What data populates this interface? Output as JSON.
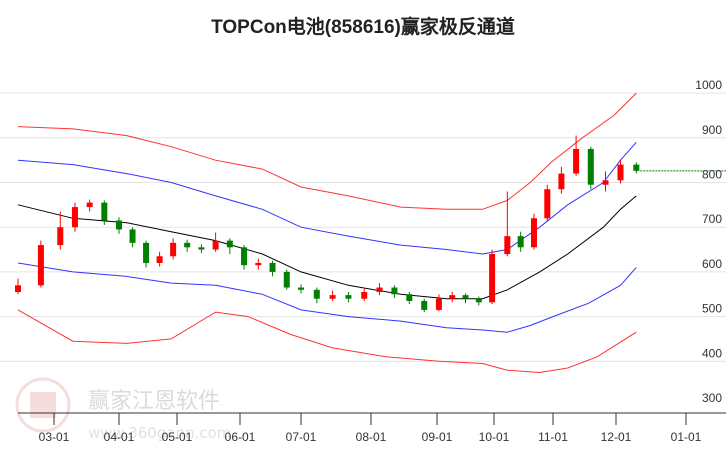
{
  "chart_data": {
    "type": "candlestick",
    "title": "TOPCon电池(858616)赢家极反通道",
    "watermark": {
      "name": "赢家江恩软件",
      "url": "www.360gann.com",
      "seal": "江赢恩家"
    },
    "y_ticks": [
      300,
      400,
      500,
      600,
      700,
      800,
      900,
      1000
    ],
    "ylim": [
      285,
      1030
    ],
    "x_ticks": [
      "03-01",
      "04-01",
      "05-01",
      "06-01",
      "07-01",
      "08-01",
      "09-01",
      "10-01",
      "11-01",
      "12-01",
      "01-01"
    ],
    "grid": "horizontal",
    "colors": {
      "up": "#ff0000",
      "down": "#008000",
      "outer": "#ff3333",
      "inner": "#3333ff",
      "mid": "#000000",
      "last": "#008000"
    },
    "last_value": 826,
    "candles": [
      [
        "02-19",
        555,
        570,
        585,
        550
      ],
      [
        "02-26",
        570,
        660,
        670,
        565
      ],
      [
        "03-04",
        660,
        700,
        735,
        650
      ],
      [
        "03-11",
        700,
        745,
        755,
        690
      ],
      [
        "03-18",
        745,
        755,
        762,
        735
      ],
      [
        "03-25",
        755,
        715,
        760,
        705
      ],
      [
        "04-01",
        715,
        695,
        722,
        685
      ],
      [
        "04-08",
        695,
        665,
        700,
        655
      ],
      [
        "04-15",
        665,
        620,
        670,
        610
      ],
      [
        "04-22",
        620,
        635,
        645,
        612
      ],
      [
        "04-29",
        635,
        665,
        675,
        628
      ],
      [
        "05-06",
        665,
        655,
        672,
        645
      ],
      [
        "05-13",
        655,
        650,
        662,
        642
      ],
      [
        "05-20",
        650,
        670,
        688,
        645
      ],
      [
        "05-27",
        670,
        655,
        675,
        640
      ],
      [
        "06-03",
        655,
        615,
        660,
        605
      ],
      [
        "06-10",
        615,
        620,
        630,
        605
      ],
      [
        "06-17",
        620,
        600,
        625,
        590
      ],
      [
        "06-24",
        600,
        565,
        605,
        560
      ],
      [
        "07-01",
        565,
        560,
        572,
        552
      ],
      [
        "07-08",
        560,
        540,
        565,
        530
      ],
      [
        "07-15",
        540,
        548,
        558,
        535
      ],
      [
        "07-22",
        548,
        540,
        555,
        532
      ],
      [
        "07-29",
        540,
        555,
        565,
        535
      ],
      [
        "08-05",
        555,
        565,
        575,
        548
      ],
      [
        "08-12",
        565,
        550,
        570,
        542
      ],
      [
        "08-19",
        550,
        535,
        555,
        528
      ],
      [
        "08-26",
        535,
        515,
        540,
        510
      ],
      [
        "09-02",
        515,
        540,
        550,
        512
      ],
      [
        "09-09",
        540,
        548,
        556,
        532
      ],
      [
        "09-16",
        548,
        540,
        552,
        530
      ],
      [
        "09-23",
        540,
        532,
        545,
        525
      ],
      [
        "09-30",
        532,
        640,
        650,
        528
      ],
      [
        "10-08",
        640,
        680,
        780,
        635
      ],
      [
        "10-15",
        680,
        655,
        690,
        645
      ],
      [
        "10-22",
        655,
        720,
        730,
        650
      ],
      [
        "10-29",
        720,
        785,
        795,
        712
      ],
      [
        "11-05",
        785,
        820,
        835,
        775
      ],
      [
        "11-12",
        820,
        875,
        905,
        815
      ],
      [
        "11-19",
        875,
        795,
        880,
        785
      ],
      [
        "11-26",
        795,
        805,
        825,
        780
      ],
      [
        "12-03",
        805,
        840,
        850,
        798
      ],
      [
        "12-10",
        840,
        826,
        845,
        820
      ]
    ],
    "bands": {
      "upper_outer": [
        [
          "02-19",
          925
        ],
        [
          "03-10",
          920
        ],
        [
          "04-05",
          905
        ],
        [
          "04-28",
          880
        ],
        [
          "05-20",
          850
        ],
        [
          "06-12",
          830
        ],
        [
          "07-01",
          790
        ],
        [
          "07-22",
          770
        ],
        [
          "08-15",
          745
        ],
        [
          "09-06",
          740
        ],
        [
          "09-25",
          740
        ],
        [
          "10-08",
          760
        ],
        [
          "10-20",
          800
        ],
        [
          "10-31",
          845
        ],
        [
          "11-15",
          900
        ],
        [
          "11-30",
          950
        ],
        [
          "12-10",
          1000
        ]
      ],
      "upper_inner": [
        [
          "02-19",
          850
        ],
        [
          "03-10",
          840
        ],
        [
          "04-05",
          820
        ],
        [
          "04-28",
          800
        ],
        [
          "05-20",
          770
        ],
        [
          "06-12",
          740
        ],
        [
          "07-01",
          700
        ],
        [
          "07-22",
          680
        ],
        [
          "08-15",
          660
        ],
        [
          "09-06",
          650
        ],
        [
          "09-25",
          640
        ],
        [
          "10-08",
          650
        ],
        [
          "10-25",
          700
        ],
        [
          "11-08",
          750
        ],
        [
          "11-25",
          800
        ],
        [
          "12-03",
          850
        ],
        [
          "12-10",
          890
        ]
      ],
      "middle": [
        [
          "02-19",
          750
        ],
        [
          "03-10",
          720
        ],
        [
          "04-05",
          710
        ],
        [
          "04-28",
          690
        ],
        [
          "05-20",
          670
        ],
        [
          "06-12",
          640
        ],
        [
          "07-01",
          600
        ],
        [
          "07-22",
          570
        ],
        [
          "08-15",
          550
        ],
        [
          "09-06",
          540
        ],
        [
          "09-25",
          540
        ],
        [
          "10-08",
          560
        ],
        [
          "10-25",
          600
        ],
        [
          "11-08",
          640
        ],
        [
          "11-25",
          700
        ],
        [
          "12-03",
          740
        ],
        [
          "12-10",
          770
        ]
      ],
      "lower_inner": [
        [
          "02-19",
          620
        ],
        [
          "03-10",
          600
        ],
        [
          "04-05",
          590
        ],
        [
          "04-28",
          575
        ],
        [
          "05-20",
          570
        ],
        [
          "06-12",
          550
        ],
        [
          "07-01",
          515
        ],
        [
          "07-22",
          500
        ],
        [
          "08-15",
          490
        ],
        [
          "09-06",
          475
        ],
        [
          "09-25",
          470
        ],
        [
          "10-08",
          465
        ],
        [
          "10-20",
          480
        ],
        [
          "11-01",
          500
        ],
        [
          "11-18",
          530
        ],
        [
          "12-03",
          570
        ],
        [
          "12-10",
          610
        ]
      ],
      "lower_outer": [
        [
          "02-19",
          515
        ],
        [
          "03-10",
          445
        ],
        [
          "04-05",
          440
        ],
        [
          "04-28",
          450
        ],
        [
          "05-20",
          510
        ],
        [
          "06-05",
          500
        ],
        [
          "06-26",
          460
        ],
        [
          "07-15",
          430
        ],
        [
          "08-08",
          410
        ],
        [
          "09-02",
          400
        ],
        [
          "09-25",
          395
        ],
        [
          "10-08",
          380
        ],
        [
          "10-25",
          375
        ],
        [
          "11-08",
          385
        ],
        [
          "11-22",
          410
        ],
        [
          "12-10",
          465
        ]
      ]
    }
  }
}
